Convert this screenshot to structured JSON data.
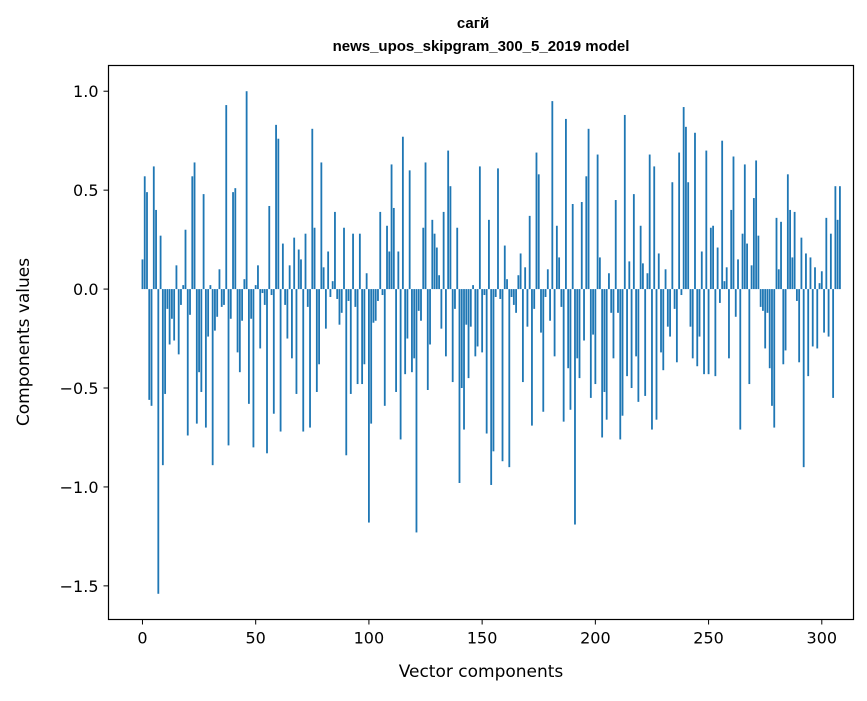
{
  "chart_data": {
    "type": "bar",
    "title": "сагй",
    "subtitle": "news_upos_skipgram_300_5_2019 model",
    "xlabel": "Vector components",
    "ylabel": "Components values",
    "xlim": [
      -15,
      314
    ],
    "ylim": [
      -1.67,
      1.13
    ],
    "x_ticks": [
      0,
      50,
      100,
      150,
      200,
      250,
      300
    ],
    "x_tick_labels": [
      "0",
      "50",
      "100",
      "150",
      "200",
      "250",
      "300"
    ],
    "y_ticks": [
      -1.5,
      -1.0,
      -0.5,
      0.0,
      0.5,
      1.0
    ],
    "y_tick_labels": [
      "−1.5",
      "−1.0",
      "−0.5",
      "0.0",
      "0.5",
      "1.0"
    ],
    "bar_color": "#1f77b4",
    "grid": false,
    "legend": "none",
    "values": [
      0.15,
      0.57,
      0.49,
      -0.56,
      -0.59,
      0.62,
      0.4,
      -1.54,
      0.27,
      -0.89,
      -0.53,
      -0.1,
      -0.28,
      -0.15,
      -0.26,
      0.12,
      -0.33,
      -0.08,
      0.02,
      0.3,
      -0.74,
      -0.13,
      0.57,
      0.64,
      -0.68,
      -0.42,
      -0.52,
      0.48,
      -0.7,
      -0.24,
      0.02,
      -0.89,
      -0.21,
      -0.14,
      0.1,
      -0.09,
      -0.08,
      0.93,
      -0.79,
      -0.15,
      0.49,
      0.51,
      -0.32,
      -0.42,
      -0.16,
      0.05,
      1.0,
      -0.58,
      -0.15,
      -0.8,
      0.02,
      0.12,
      -0.3,
      -0.02,
      -0.08,
      -0.83,
      0.42,
      -0.03,
      -0.63,
      0.83,
      0.76,
      -0.72,
      0.23,
      -0.08,
      -0.25,
      0.12,
      -0.35,
      0.26,
      -0.53,
      0.2,
      0.15,
      -0.72,
      0.28,
      -0.09,
      -0.7,
      0.81,
      0.31,
      -0.52,
      -0.38,
      0.64,
      0.11,
      -0.2,
      0.19,
      -0.04,
      0.04,
      0.39,
      -0.05,
      -0.18,
      -0.12,
      0.31,
      -0.84,
      -0.06,
      -0.53,
      0.28,
      -0.09,
      -0.48,
      0.28,
      -0.48,
      -0.38,
      0.08,
      -1.18,
      -0.68,
      -0.17,
      -0.16,
      -0.06,
      0.39,
      -0.03,
      -0.59,
      0.32,
      0.19,
      0.63,
      0.41,
      -0.52,
      0.19,
      -0.76,
      0.77,
      -0.43,
      -0.25,
      0.6,
      -0.42,
      -0.35,
      -1.23,
      -0.11,
      -0.16,
      0.31,
      0.64,
      -0.51,
      -0.28,
      0.35,
      0.28,
      0.21,
      0.07,
      -0.2,
      0.39,
      -0.34,
      0.7,
      0.52,
      -0.47,
      -0.1,
      0.31,
      -0.98,
      -0.5,
      -0.71,
      -0.18,
      -0.45,
      -0.19,
      0.02,
      -0.34,
      -0.29,
      0.62,
      -0.32,
      -0.03,
      -0.73,
      0.35,
      -0.99,
      -0.82,
      -0.04,
      0.61,
      -0.05,
      -0.87,
      0.22,
      0.05,
      -0.9,
      -0.04,
      -0.08,
      -0.12,
      0.07,
      0.18,
      -0.47,
      0.11,
      -0.19,
      0.37,
      -0.69,
      -0.1,
      0.69,
      0.58,
      -0.22,
      -0.62,
      -0.04,
      0.1,
      -0.16,
      0.95,
      -0.34,
      0.32,
      0.16,
      -0.09,
      -0.67,
      0.86,
      -0.4,
      -0.61,
      0.43,
      -1.19,
      -0.35,
      -0.45,
      0.44,
      -0.26,
      0.57,
      0.81,
      -0.55,
      -0.23,
      -0.48,
      0.68,
      0.16,
      -0.75,
      -0.52,
      -0.66,
      0.08,
      -0.12,
      -0.35,
      0.45,
      -0.12,
      -0.76,
      -0.64,
      0.88,
      -0.44,
      0.14,
      -0.5,
      0.48,
      -0.34,
      -0.57,
      0.32,
      0.13,
      -0.54,
      0.08,
      0.68,
      -0.71,
      0.62,
      -0.66,
      0.18,
      -0.32,
      -0.41,
      0.1,
      -0.19,
      -0.24,
      0.54,
      -0.1,
      -0.37,
      0.69,
      -0.03,
      0.92,
      0.82,
      0.54,
      -0.19,
      -0.35,
      0.79,
      -0.39,
      -0.24,
      0.19,
      -0.43,
      0.7,
      -0.43,
      0.31,
      0.32,
      -0.44,
      0.21,
      -0.07,
      0.75,
      0.04,
      0.11,
      -0.35,
      0.4,
      0.67,
      -0.14,
      0.15,
      -0.71,
      0.28,
      0.63,
      0.23,
      -0.48,
      0.12,
      0.46,
      0.65,
      0.27,
      -0.09,
      -0.11,
      -0.3,
      -0.12,
      -0.4,
      -0.59,
      -0.7,
      0.36,
      0.1,
      0.34,
      -0.38,
      -0.31,
      0.58,
      0.4,
      0.16,
      0.39,
      -0.06,
      -0.37,
      0.26,
      -0.9,
      0.18,
      -0.44,
      0.16,
      -0.29,
      0.11,
      -0.3,
      0.03,
      0.09,
      -0.22,
      0.36,
      -0.24,
      0.28,
      -0.55,
      0.52,
      0.35,
      0.52,
      0.0
    ]
  }
}
